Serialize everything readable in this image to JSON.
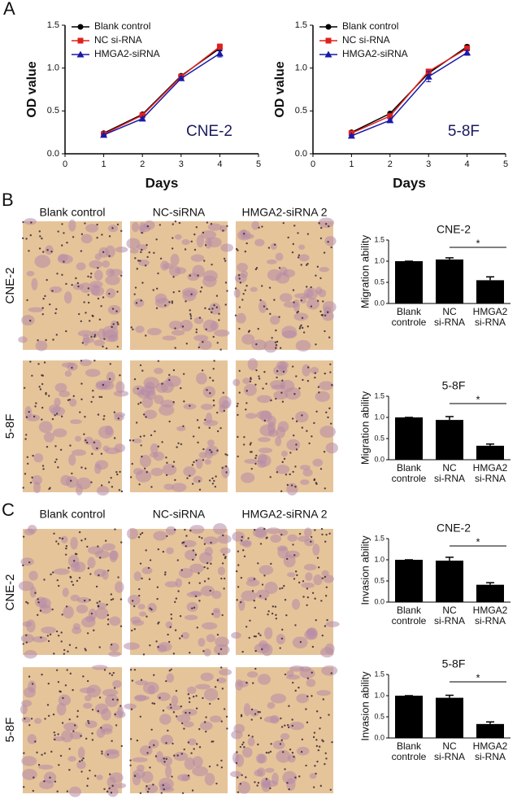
{
  "figure": {
    "panels": [
      "A",
      "B",
      "C"
    ],
    "columns": [
      "Blank control",
      "NC-siRNA",
      "HMGA2-siRNA 2"
    ],
    "rows": [
      "CNE-2",
      "5-8F"
    ]
  },
  "chart_data": [
    {
      "type": "line",
      "xlabel": "Days",
      "ylabel": "OD value",
      "annotation": "CNE-2",
      "x": [
        1,
        2,
        3,
        4
      ],
      "xlim": [
        0,
        5
      ],
      "xticks": [
        0,
        1,
        2,
        3,
        4,
        5
      ],
      "ylim": [
        0,
        1.5
      ],
      "yticks": [
        {
          "value": 0,
          "label": "0.0"
        },
        {
          "value": 0.5,
          "label": "0.5"
        },
        {
          "value": 1,
          "label": "1.0"
        },
        {
          "value": 1.5,
          "label": "1.5"
        }
      ],
      "series": [
        {
          "name": "Blank control",
          "color": "#000000",
          "marker": "circle",
          "values": [
            0.24,
            0.46,
            0.91,
            1.23
          ],
          "errors": [
            0.01,
            0.01,
            0.02,
            0.03
          ]
        },
        {
          "name": "NC si-RNA",
          "color": "#e0201b",
          "marker": "square",
          "values": [
            0.23,
            0.45,
            0.9,
            1.25
          ],
          "errors": [
            0.01,
            0.01,
            0.02,
            0.03
          ]
        },
        {
          "name": "HMGA2-siRNA",
          "color": "#1a1aa8",
          "marker": "triangle",
          "values": [
            0.22,
            0.41,
            0.88,
            1.17
          ],
          "errors": [
            0.01,
            0.01,
            0.02,
            0.04
          ]
        }
      ]
    },
    {
      "type": "line",
      "xlabel": "Days",
      "ylabel": "OD value",
      "annotation": "5-8F",
      "x": [
        1,
        2,
        3,
        4
      ],
      "xlim": [
        0,
        5
      ],
      "xticks": [
        0,
        1,
        2,
        3,
        4,
        5
      ],
      "ylim": [
        0,
        1.5
      ],
      "yticks": [
        {
          "value": 0,
          "label": "0.0"
        },
        {
          "value": 0.5,
          "label": "0.5"
        },
        {
          "value": 1,
          "label": "1.0"
        },
        {
          "value": 1.5,
          "label": "1.5"
        }
      ],
      "series": [
        {
          "name": "Blank control",
          "color": "#000000",
          "marker": "circle",
          "values": [
            0.25,
            0.47,
            0.94,
            1.25
          ],
          "errors": [
            0.01,
            0.01,
            0.02,
            0.02
          ]
        },
        {
          "name": "NC si-RNA",
          "color": "#e0201b",
          "marker": "square",
          "values": [
            0.24,
            0.44,
            0.96,
            1.23
          ],
          "errors": [
            0.01,
            0.01,
            0.02,
            0.02
          ]
        },
        {
          "name": "HMGA2-siRNA",
          "color": "#1a1aa8",
          "marker": "triangle",
          "values": [
            0.21,
            0.39,
            0.9,
            1.18
          ],
          "errors": [
            0.01,
            0.01,
            0.06,
            0.03
          ]
        }
      ]
    },
    {
      "type": "bar",
      "title": "CNE-2",
      "ylabel": "Migration ability",
      "annotation": "*",
      "color": "#000000",
      "categories": [
        [
          "Blank",
          "controle"
        ],
        [
          "NC",
          "si-RNA"
        ],
        [
          "HMGA2",
          "si-RNA"
        ]
      ],
      "values": [
        1.0,
        1.04,
        0.55
      ],
      "errors": [
        0,
        0.04,
        0.08
      ],
      "ylim": [
        0,
        1.5
      ],
      "yticks": [
        {
          "value": 0,
          "label": "0.0"
        },
        {
          "value": 0.5,
          "label": "0.5"
        },
        {
          "value": 1,
          "label": "1.0"
        },
        {
          "value": 1.5,
          "label": "1.5"
        }
      ]
    },
    {
      "type": "bar",
      "title": "5-8F",
      "ylabel": "Migration ability",
      "annotation": "*",
      "color": "#000000",
      "categories": [
        [
          "Blank",
          "controle"
        ],
        [
          "NC",
          "si-RNA"
        ],
        [
          "HMGA2",
          "si-RNA"
        ]
      ],
      "values": [
        1.0,
        0.94,
        0.33
      ],
      "errors": [
        0,
        0.08,
        0.04
      ],
      "ylim": [
        0,
        1.5
      ],
      "yticks": [
        {
          "value": 0,
          "label": "0.0"
        },
        {
          "value": 0.5,
          "label": "0.5"
        },
        {
          "value": 1,
          "label": "1.0"
        },
        {
          "value": 1.5,
          "label": "1.5"
        }
      ]
    },
    {
      "type": "bar",
      "title": "CNE-2",
      "ylabel": "Invasion ability",
      "annotation": "*",
      "color": "#000000",
      "categories": [
        [
          "Blank",
          "controle"
        ],
        [
          "NC",
          "si-RNA"
        ],
        [
          "HMGA2",
          "si-RNA"
        ]
      ],
      "values": [
        1.0,
        0.98,
        0.41
      ],
      "errors": [
        0,
        0.08,
        0.05
      ],
      "ylim": [
        0,
        1.5
      ],
      "yticks": [
        {
          "value": 0,
          "label": "0.0"
        },
        {
          "value": 0.5,
          "label": "0.5"
        },
        {
          "value": 1,
          "label": "1.0"
        },
        {
          "value": 1.5,
          "label": "1.5"
        }
      ]
    },
    {
      "type": "bar",
      "title": "5-8F",
      "ylabel": "Invasion ability",
      "annotation": "*",
      "color": "#000000",
      "categories": [
        [
          "Blank",
          "controle"
        ],
        [
          "NC",
          "si-RNA"
        ],
        [
          "HMGA2",
          "si-RNA"
        ]
      ],
      "values": [
        1.0,
        0.95,
        0.33
      ],
      "errors": [
        0,
        0.06,
        0.05
      ],
      "ylim": [
        0,
        1.5
      ],
      "yticks": [
        {
          "value": 0,
          "label": "0.0"
        },
        {
          "value": 0.5,
          "label": "0.5"
        },
        {
          "value": 1,
          "label": "1.0"
        },
        {
          "value": 1.5,
          "label": "1.5"
        }
      ]
    }
  ]
}
